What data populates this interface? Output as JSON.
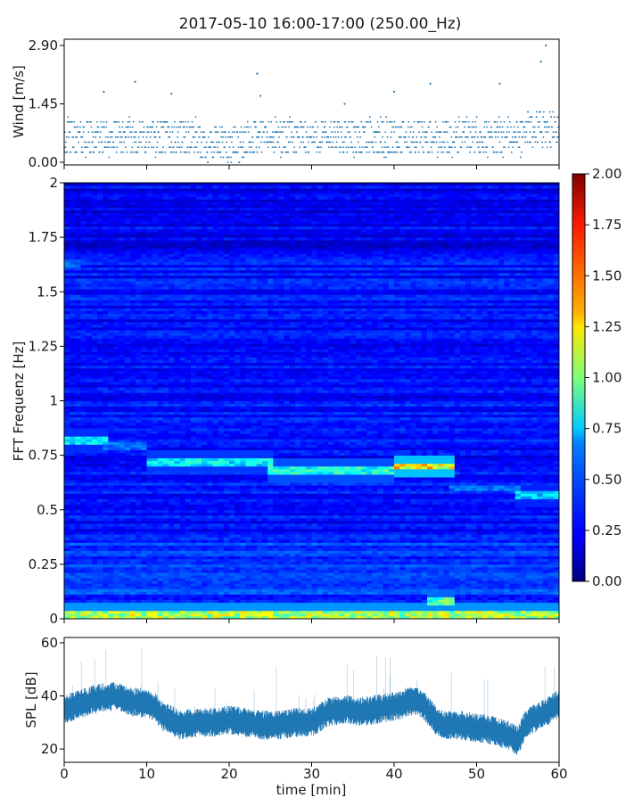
{
  "chart_data": {
    "title": "2017-05-10 16:00-17:00 (250.00_Hz)",
    "panels": [
      {
        "id": "wind",
        "type": "scatter",
        "ylabel": "Wind [m/s]",
        "ylim": [
          0,
          2.9
        ],
        "yticks": [
          "0.00",
          "1.45",
          "2.90"
        ],
        "xlim": [
          0,
          60
        ],
        "color": "#1f77b4",
        "points_description": "roughly 0.0-1.3 m/s scattered dots over the hour, quantized levels, peaks near 2.0 at ~8 min and ~2.9 at ~58 min",
        "peaks": [
          {
            "x": 4.8,
            "y": 1.75
          },
          {
            "x": 8.6,
            "y": 2.0
          },
          {
            "x": 13.0,
            "y": 1.7
          },
          {
            "x": 23.4,
            "y": 2.2
          },
          {
            "x": 23.8,
            "y": 1.65
          },
          {
            "x": 34.0,
            "y": 1.45
          },
          {
            "x": 40.0,
            "y": 1.75
          },
          {
            "x": 44.4,
            "y": 1.95
          },
          {
            "x": 52.8,
            "y": 1.95
          },
          {
            "x": 57.8,
            "y": 2.5
          },
          {
            "x": 58.4,
            "y": 2.9
          }
        ]
      },
      {
        "id": "spectrogram",
        "type": "heatmap",
        "ylabel": "FFT Frequenz [Hz]",
        "ylim": [
          0,
          2
        ],
        "yticks": [
          "0",
          "0.25",
          "0.5",
          "0.75",
          "1",
          "1.25",
          "1.5",
          "1.75",
          "2"
        ],
        "xlim": [
          0,
          60
        ],
        "colormap": "jet",
        "colorbar": {
          "range": [
            0,
            2
          ],
          "ticks": [
            "0.00",
            "0.25",
            "0.50",
            "0.75",
            "1.00",
            "1.25",
            "1.50",
            "1.75",
            "2.00"
          ]
        },
        "features": [
          {
            "x_range": [
              0,
              5
            ],
            "freq": 0.82,
            "level": 0.75
          },
          {
            "x_range": [
              5,
              10
            ],
            "freq": 0.79,
            "level": 0.5
          },
          {
            "x_range": [
              10,
              25
            ],
            "freq": 0.72,
            "level": 0.8
          },
          {
            "x_range": [
              25,
              40
            ],
            "freq": 0.68,
            "level": 0.9
          },
          {
            "x_range": [
              40,
              47
            ],
            "freq": 0.7,
            "level": 1.4
          },
          {
            "x_range": [
              47,
              55
            ],
            "freq": 0.6,
            "level": 0.5
          },
          {
            "x_range": [
              55,
              60
            ],
            "freq": 0.57,
            "level": 0.7
          },
          {
            "x_range": [
              0,
              60
            ],
            "freq": 0.02,
            "level": 1.2
          },
          {
            "x_range": [
              0,
              2
            ],
            "freq": 1.63,
            "level": 0.55
          },
          {
            "x_range": [
              44,
              47
            ],
            "freq": 0.08,
            "level": 1.0
          }
        ]
      },
      {
        "id": "spl",
        "type": "line",
        "ylabel": "SPL [dB]",
        "xlabel": "time [min]",
        "ylim": [
          15,
          62
        ],
        "yticks": [
          "20",
          "40",
          "60"
        ],
        "ytick_values": [
          20,
          40,
          60
        ],
        "xlim": [
          0,
          60
        ],
        "xticks": [
          "0",
          "10",
          "20",
          "30",
          "40",
          "50",
          "60"
        ],
        "xtick_values": [
          0,
          10,
          20,
          30,
          40,
          50,
          60
        ],
        "color": "#1f77b4",
        "x": [
          0,
          2,
          4,
          6,
          8,
          10,
          11,
          12,
          13,
          14,
          16,
          18,
          20,
          22,
          24,
          26,
          28,
          30,
          32,
          34,
          36,
          38,
          40,
          42,
          43,
          44,
          45,
          46,
          48,
          50,
          52,
          54,
          55,
          56,
          58,
          60
        ],
        "values": [
          35,
          37,
          39,
          40,
          38,
          37,
          36,
          32,
          31,
          29,
          30,
          30,
          31,
          30,
          29,
          29,
          30,
          30,
          34,
          35,
          34,
          35,
          36,
          38,
          38,
          35,
          31,
          29,
          29,
          28,
          27,
          25,
          23,
          30,
          33,
          37
        ]
      }
    ]
  }
}
